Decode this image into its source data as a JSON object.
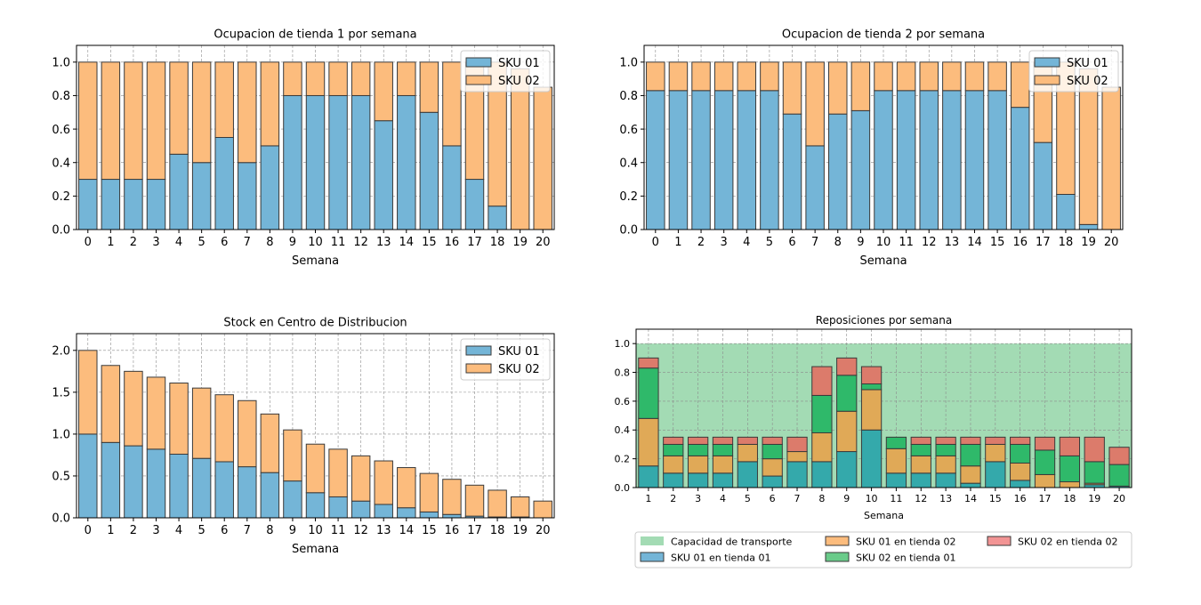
{
  "colors": {
    "sku01": "#74b5d7",
    "sku02": "#fcbc7d",
    "capacity": "#a3dbb4",
    "rep_sku01_t1": "#34a9ab",
    "rep_sku01_t2": "#e0a957",
    "rep_sku02_t1": "#2fb96a",
    "rep_sku02_t2": "#dc7b6b",
    "legend_sku01_t1": "#74b5d7",
    "legend_sku01_t2": "#fcbc7d",
    "legend_sku02_t1": "#6acb8a",
    "legend_sku02_t2": "#f29494"
  },
  "chart_data": [
    {
      "id": "tienda1",
      "type": "bar",
      "stacked": true,
      "title": "Ocupacion de tienda 1 por semana",
      "xlabel": "Semana",
      "ylabel": "",
      "ylim": [
        0,
        1.1
      ],
      "yticks": [
        "0.0",
        "0.2",
        "0.4",
        "0.6",
        "0.8",
        "1.0"
      ],
      "grid": true,
      "legend_position": "top-right",
      "categories": [
        "0",
        "1",
        "2",
        "3",
        "4",
        "5",
        "6",
        "7",
        "8",
        "9",
        "10",
        "11",
        "12",
        "13",
        "14",
        "15",
        "16",
        "17",
        "18",
        "19",
        "20"
      ],
      "series": [
        {
          "name": "SKU 01",
          "values": [
            0.3,
            0.3,
            0.3,
            0.3,
            0.45,
            0.4,
            0.55,
            0.4,
            0.5,
            0.8,
            0.8,
            0.8,
            0.8,
            0.65,
            0.8,
            0.7,
            0.5,
            0.3,
            0.14,
            0.0,
            0.0
          ]
        },
        {
          "name": "SKU 02",
          "values": [
            0.7,
            0.7,
            0.7,
            0.7,
            0.55,
            0.6,
            0.45,
            0.6,
            0.5,
            0.2,
            0.2,
            0.2,
            0.2,
            0.35,
            0.2,
            0.3,
            0.5,
            0.7,
            0.86,
            0.96,
            0.85
          ]
        }
      ]
    },
    {
      "id": "tienda2",
      "type": "bar",
      "stacked": true,
      "title": "Ocupacion de tienda 2 por semana",
      "xlabel": "Semana",
      "ylabel": "",
      "ylim": [
        0,
        1.1
      ],
      "yticks": [
        "0.0",
        "0.2",
        "0.4",
        "0.6",
        "0.8",
        "1.0"
      ],
      "grid": true,
      "legend_position": "top-right",
      "categories": [
        "0",
        "1",
        "2",
        "3",
        "4",
        "5",
        "6",
        "7",
        "8",
        "9",
        "10",
        "11",
        "12",
        "13",
        "14",
        "15",
        "16",
        "17",
        "18",
        "19",
        "20"
      ],
      "series": [
        {
          "name": "SKU 01",
          "values": [
            0.83,
            0.83,
            0.83,
            0.83,
            0.83,
            0.83,
            0.69,
            0.5,
            0.69,
            0.71,
            0.83,
            0.83,
            0.83,
            0.83,
            0.83,
            0.83,
            0.73,
            0.52,
            0.21,
            0.03,
            0.0
          ]
        },
        {
          "name": "SKU 02",
          "values": [
            0.17,
            0.17,
            0.17,
            0.17,
            0.17,
            0.17,
            0.31,
            0.5,
            0.31,
            0.29,
            0.17,
            0.17,
            0.17,
            0.17,
            0.17,
            0.17,
            0.27,
            0.48,
            0.79,
            0.93,
            0.85
          ]
        }
      ]
    },
    {
      "id": "cd",
      "type": "bar",
      "stacked": true,
      "title": "Stock en Centro de Distribucion",
      "xlabel": "Semana",
      "ylabel": "",
      "ylim": [
        0,
        2.2
      ],
      "yticks": [
        "0.0",
        "0.5",
        "1.0",
        "1.5",
        "2.0"
      ],
      "grid": true,
      "legend_position": "top-right",
      "categories": [
        "0",
        "1",
        "2",
        "3",
        "4",
        "5",
        "6",
        "7",
        "8",
        "9",
        "10",
        "11",
        "12",
        "13",
        "14",
        "15",
        "16",
        "17",
        "18",
        "19",
        "20"
      ],
      "series": [
        {
          "name": "SKU 01",
          "values": [
            1.0,
            0.9,
            0.86,
            0.82,
            0.76,
            0.71,
            0.67,
            0.61,
            0.54,
            0.44,
            0.3,
            0.25,
            0.2,
            0.16,
            0.12,
            0.07,
            0.04,
            0.02,
            0.01,
            0.01,
            0.0
          ]
        },
        {
          "name": "SKU 02",
          "values": [
            1.0,
            0.92,
            0.89,
            0.86,
            0.85,
            0.84,
            0.8,
            0.79,
            0.7,
            0.61,
            0.58,
            0.57,
            0.54,
            0.52,
            0.48,
            0.46,
            0.42,
            0.37,
            0.32,
            0.24,
            0.2
          ]
        }
      ]
    },
    {
      "id": "reposiciones",
      "type": "bar",
      "stacked": true,
      "title": "Reposiciones por semana",
      "xlabel": "Semana",
      "ylabel": "",
      "ylim": [
        0,
        1.1
      ],
      "yticks": [
        "0.0",
        "0.2",
        "0.4",
        "0.6",
        "0.8",
        "1.0"
      ],
      "grid": true,
      "capacity": 1.0,
      "legend_position": "below",
      "categories": [
        "1",
        "2",
        "3",
        "4",
        "5",
        "6",
        "7",
        "8",
        "9",
        "10",
        "11",
        "12",
        "13",
        "14",
        "15",
        "16",
        "17",
        "18",
        "19",
        "20"
      ],
      "series": [
        {
          "name": "SKU 01 en tienda 01",
          "values": [
            0.15,
            0.1,
            0.1,
            0.1,
            0.18,
            0.08,
            0.18,
            0.18,
            0.25,
            0.4,
            0.1,
            0.1,
            0.1,
            0.03,
            0.18,
            0.05,
            0.0,
            0.0,
            0.02,
            0.01
          ]
        },
        {
          "name": "SKU 01 en tienda 02",
          "values": [
            0.33,
            0.12,
            0.12,
            0.12,
            0.12,
            0.12,
            0.07,
            0.2,
            0.28,
            0.28,
            0.17,
            0.12,
            0.12,
            0.12,
            0.12,
            0.12,
            0.09,
            0.04,
            0.01,
            0.0
          ]
        },
        {
          "name": "SKU 02 en tienda 01",
          "values": [
            0.35,
            0.08,
            0.08,
            0.08,
            0.0,
            0.1,
            0.0,
            0.26,
            0.25,
            0.04,
            0.08,
            0.08,
            0.08,
            0.15,
            0.0,
            0.13,
            0.17,
            0.18,
            0.15,
            0.15
          ]
        },
        {
          "name": "SKU 02 en tienda 02",
          "values": [
            0.07,
            0.05,
            0.05,
            0.05,
            0.05,
            0.05,
            0.1,
            0.2,
            0.12,
            0.12,
            0.0,
            0.05,
            0.05,
            0.05,
            0.05,
            0.05,
            0.09,
            0.13,
            0.17,
            0.12
          ]
        }
      ],
      "legend": [
        "Capacidad de transporte",
        "SKU 01 en tienda 02",
        "SKU 02 en tienda 02",
        "SKU 01 en tienda 01",
        "SKU 02 en tienda 01"
      ]
    }
  ]
}
